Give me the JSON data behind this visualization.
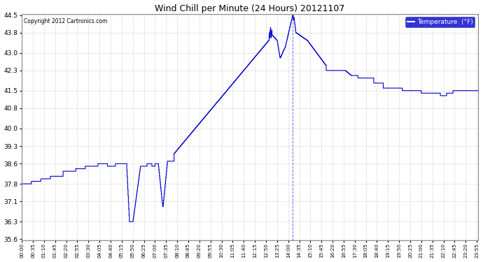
{
  "title": "Wind Chill per Minute (24 Hours) 20121107",
  "copyright": "Copyright 2012 Cartronics.com",
  "legend_label": "Temperature  (°F)",
  "line_color": "#0000cc",
  "background_color": "#ffffff",
  "grid_color": "#bbbbbb",
  "ylim": [
    35.6,
    44.5
  ],
  "yticks": [
    35.6,
    36.3,
    37.1,
    37.8,
    38.6,
    39.3,
    40.0,
    40.8,
    41.5,
    42.3,
    43.0,
    43.8,
    44.5
  ],
  "dashed_vline_x": 855,
  "legend_facecolor": "#0000cc",
  "legend_textcolor": "#ffffff",
  "tick_interval_min": 35
}
